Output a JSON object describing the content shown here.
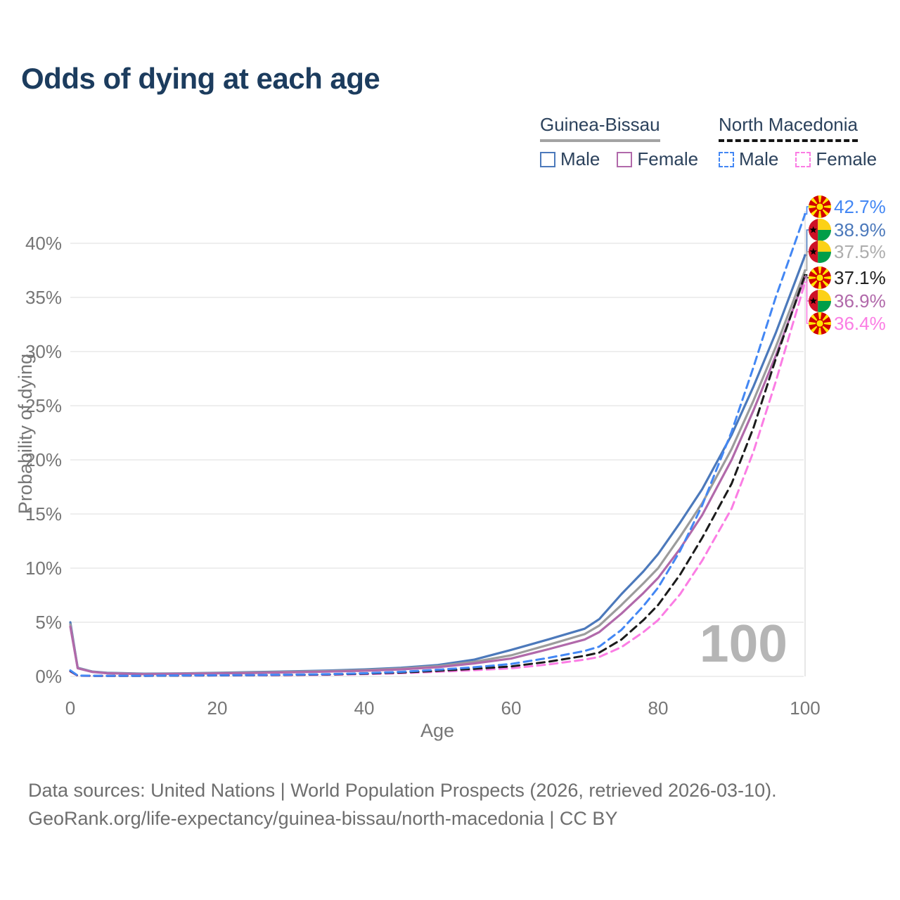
{
  "title": "Odds of dying at each age",
  "legend": {
    "groups": [
      {
        "name": "Guinea-Bissau",
        "line_style": "solid",
        "underline_color": "#a3a3a3",
        "items": [
          {
            "label": "Male",
            "series": "gb_male"
          },
          {
            "label": "Female",
            "series": "gb_female"
          }
        ]
      },
      {
        "name": "North Macedonia",
        "line_style": "dashed",
        "underline_color": "#141414",
        "items": [
          {
            "label": "Male",
            "series": "nm_male"
          },
          {
            "label": "Female",
            "series": "nm_female"
          }
        ]
      }
    ]
  },
  "watermark_hover_age": "100",
  "chart_data": {
    "type": "line",
    "title": "Odds of dying at each age",
    "xlabel": "Age",
    "ylabel": "Probability of dying",
    "xlim": [
      0,
      100
    ],
    "ylim_pct": [
      0,
      44
    ],
    "x_ticks": [
      0,
      20,
      40,
      60,
      80,
      100
    ],
    "y_ticks_pct": [
      0,
      5,
      10,
      15,
      20,
      25,
      30,
      35,
      40
    ],
    "y_tick_suffix": "%",
    "grid": "horizontal",
    "hover_line_age": 100,
    "legend_position": "top-right",
    "ages": [
      0,
      1,
      3,
      5,
      10,
      15,
      20,
      25,
      30,
      35,
      40,
      45,
      50,
      55,
      60,
      65,
      70,
      72,
      75,
      78,
      80,
      83,
      86,
      90,
      93,
      96,
      100
    ],
    "series": [
      {
        "id": "gb_male",
        "country": "Guinea-Bissau",
        "sex": "Male",
        "color": "#4c79bb",
        "dashed": false,
        "values_pct": [
          5.0,
          0.8,
          0.45,
          0.33,
          0.25,
          0.28,
          0.34,
          0.4,
          0.46,
          0.54,
          0.64,
          0.8,
          1.05,
          1.55,
          2.45,
          3.4,
          4.4,
          5.3,
          7.6,
          9.7,
          11.3,
          14.2,
          17.3,
          22.3,
          26.8,
          31.7,
          38.9
        ]
      },
      {
        "id": "gb_total",
        "country": "Guinea-Bissau",
        "sex": "Both",
        "color": "#9c9c9c",
        "dashed": false,
        "values_pct": [
          4.8,
          0.78,
          0.43,
          0.31,
          0.23,
          0.26,
          0.31,
          0.36,
          0.42,
          0.49,
          0.58,
          0.72,
          0.95,
          1.35,
          1.95,
          2.9,
          3.9,
          4.7,
          6.6,
          8.6,
          10.0,
          12.9,
          16.0,
          21.0,
          25.5,
          30.4,
          37.5
        ]
      },
      {
        "id": "gb_female",
        "country": "Guinea-Bissau",
        "sex": "Female",
        "color": "#b169aa",
        "dashed": false,
        "values_pct": [
          4.6,
          0.75,
          0.41,
          0.29,
          0.21,
          0.24,
          0.28,
          0.32,
          0.38,
          0.44,
          0.52,
          0.65,
          0.85,
          1.2,
          1.65,
          2.5,
          3.4,
          4.1,
          5.8,
          7.7,
          9.1,
          11.8,
          14.9,
          20.0,
          24.6,
          29.6,
          36.9
        ]
      },
      {
        "id": "nm_female",
        "country": "North Macedonia",
        "sex": "Female",
        "color": "#fb7de4",
        "dashed": true,
        "values_pct": [
          0.45,
          0.06,
          0.045,
          0.04,
          0.05,
          0.07,
          0.085,
          0.1,
          0.12,
          0.15,
          0.21,
          0.3,
          0.43,
          0.58,
          0.75,
          1.1,
          1.55,
          1.8,
          2.7,
          4.1,
          5.2,
          7.6,
          10.7,
          15.5,
          20.8,
          27.2,
          36.4
        ]
      },
      {
        "id": "nm_total",
        "country": "North Macedonia",
        "sex": "Both",
        "color": "#1b1b1b",
        "dashed": true,
        "values_pct": [
          0.5,
          0.07,
          0.05,
          0.045,
          0.055,
          0.08,
          0.1,
          0.12,
          0.14,
          0.18,
          0.25,
          0.36,
          0.52,
          0.7,
          0.92,
          1.35,
          1.9,
          2.2,
          3.4,
          5.2,
          6.6,
          9.4,
          12.8,
          17.8,
          23.0,
          29.3,
          37.1
        ]
      },
      {
        "id": "nm_male",
        "country": "North Macedonia",
        "sex": "Male",
        "color": "#4387f4",
        "dashed": true,
        "values_pct": [
          0.55,
          0.08,
          0.06,
          0.05,
          0.06,
          0.09,
          0.11,
          0.13,
          0.16,
          0.21,
          0.29,
          0.42,
          0.62,
          0.85,
          1.15,
          1.7,
          2.35,
          2.75,
          4.3,
          6.5,
          8.2,
          11.6,
          15.8,
          22.6,
          28.6,
          35.0,
          42.7
        ]
      }
    ],
    "end_labels": [
      {
        "text": "42.7%",
        "series": "nm_male",
        "flag": "north-macedonia",
        "color": "#4387f4"
      },
      {
        "text": "38.9%",
        "series": "gb_male",
        "flag": "guinea-bissau",
        "color": "#4c79bb"
      },
      {
        "text": "37.5%",
        "series": "gb_total",
        "flag": "guinea-bissau",
        "color": "#adadad"
      },
      {
        "text": "37.1%",
        "series": "nm_total",
        "flag": "north-macedonia",
        "color": "#222222"
      },
      {
        "text": "36.9%",
        "series": "gb_female",
        "flag": "guinea-bissau",
        "color": "#b169aa"
      },
      {
        "text": "36.4%",
        "series": "nm_female",
        "flag": "north-macedonia",
        "color": "#fb7de4"
      }
    ],
    "flag_colors": {
      "north-macedonia": {
        "red": "#d20000",
        "yellow": "#ffe600"
      },
      "guinea-bissau": {
        "red": "#ce1126",
        "yellow": "#fcd116",
        "green": "#009e49",
        "star": "#000000"
      }
    }
  },
  "footer": {
    "line1": "Data sources: United Nations | World Population Prospects (2026, retrieved 2026-03-10).",
    "line2": "GeoRank.org/life-expectancy/guinea-bissau/north-macedonia | CC BY"
  }
}
